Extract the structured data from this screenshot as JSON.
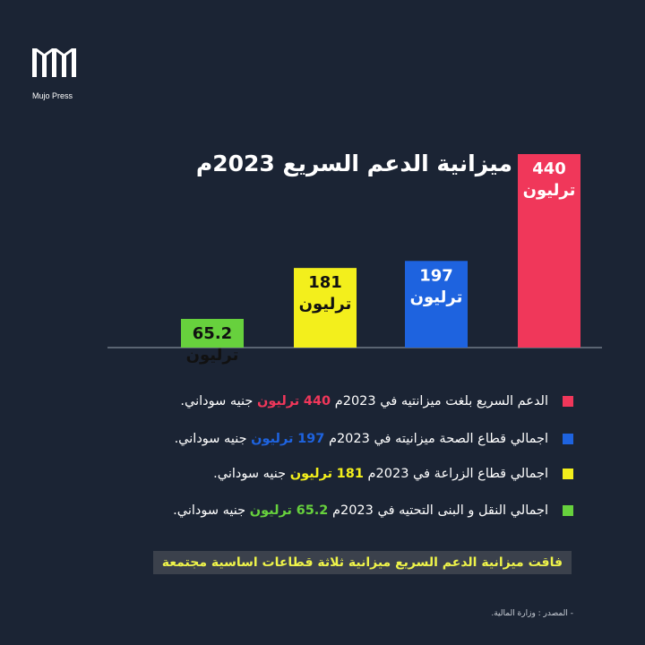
{
  "brand": {
    "name": "Mujo Press"
  },
  "title": "ميزانية الدعم السريع 2023م",
  "chart_data": {
    "type": "bar",
    "title": "ميزانية الدعم السريع 2023م",
    "unit": "ترليون",
    "categories": [
      "النقل والبنى التحتية",
      "الزراعة",
      "الصحة",
      "الدعم السريع"
    ],
    "values": [
      65.2,
      181,
      197,
      440
    ],
    "value_labels": [
      "65.2",
      "181",
      "197",
      "440"
    ],
    "colors": [
      "#67d13d",
      "#f3ef1c",
      "#1e63df",
      "#f0375a"
    ],
    "label_colors": [
      "#111111",
      "#111111",
      "#ffffff",
      "#ffffff"
    ],
    "ylim": [
      0,
      440
    ],
    "grid": false,
    "legend_position": "bottom"
  },
  "legend": [
    {
      "color": "#f0375a",
      "prefix": "الدعم السريع بلغت ميزانتيه في 2023م ",
      "number": "440",
      "highlight": "ترليون",
      "suffix": " جنيه سوداني."
    },
    {
      "color": "#1e63df",
      "prefix": "اجمالي قطاع الصحة ميزانيته في 2023م ",
      "number": "197",
      "highlight": "ترليون",
      "suffix": " جنيه سوداني."
    },
    {
      "color": "#f3ef1c",
      "prefix": "اجمالي قطاع الزراعة في 2023م ",
      "number": "181",
      "highlight": "ترليون",
      "suffix": " جنيه سوداني."
    },
    {
      "color": "#67d13d",
      "prefix": "اجمالي النقل و البنى التحتيه في 2023م ",
      "number": "65.2",
      "highlight": "ترليون",
      "suffix": " جنيه سوداني."
    }
  ],
  "footer": "فاقت ميزانية الدعم السريع ميزانية ثلاثة قطاعات اساسية مجتمعة",
  "source": "- المصدر : وزارة المالية."
}
